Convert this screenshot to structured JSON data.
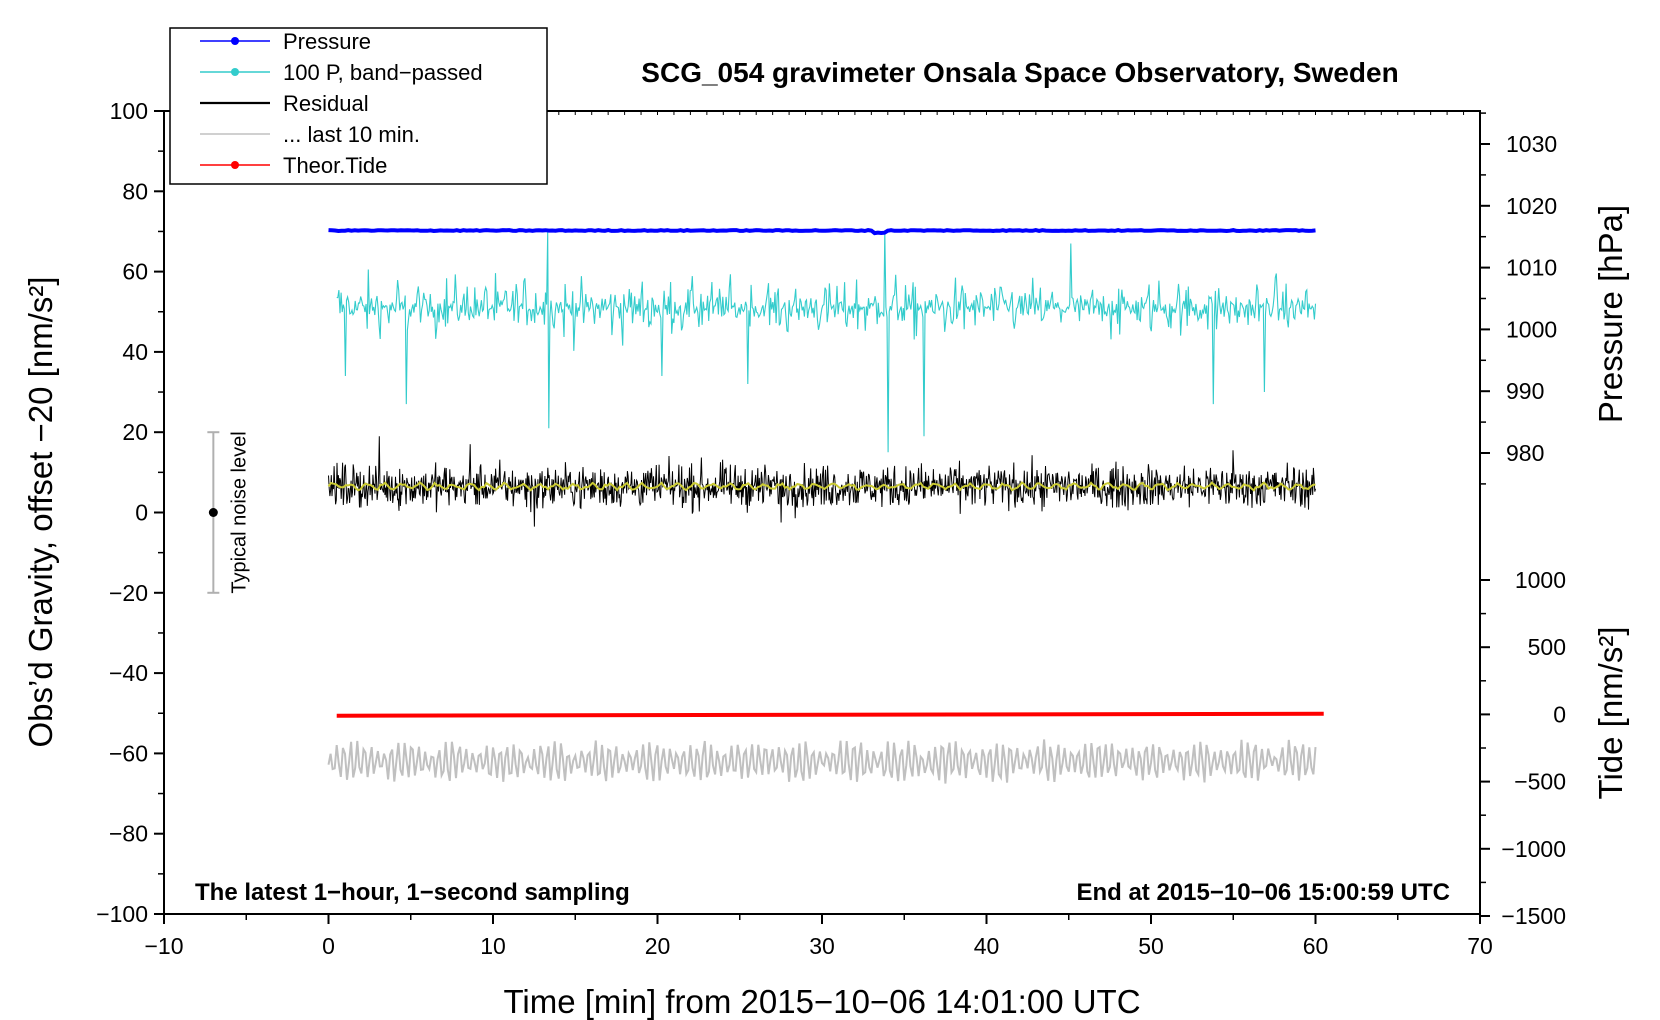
{
  "chart_data": {
    "type": "line",
    "title": "SCG_054 gravimeter Onsala Space Observatory, Sweden",
    "xlabel": "Time [min] from 2015−10−06 14:01:00 UTC",
    "ylabel_left": "Obs’d Gravity, offset −20 [nm/s²]",
    "ylabel_right_top": "Pressure [hPa]",
    "ylabel_right_bottom": "Tide [nm/s²]",
    "xlim": [
      -10,
      70
    ],
    "ylim": [
      -100,
      100
    ],
    "pressure_range": [
      1015,
      1030
    ],
    "tide_range": [
      -1500,
      1000
    ],
    "x_ticks": [
      {
        "v": -10,
        "label": "−10"
      },
      {
        "v": 0,
        "label": "0"
      },
      {
        "v": 10,
        "label": "10"
      },
      {
        "v": 20,
        "label": "20"
      },
      {
        "v": 30,
        "label": "30"
      },
      {
        "v": 40,
        "label": "40"
      },
      {
        "v": 50,
        "label": "50"
      },
      {
        "v": 60,
        "label": "60"
      },
      {
        "v": 70,
        "label": "70"
      }
    ],
    "y_ticks": [
      {
        "v": 100,
        "label": "100"
      },
      {
        "v": 80,
        "label": "80"
      },
      {
        "v": 60,
        "label": "60"
      },
      {
        "v": 40,
        "label": "40"
      },
      {
        "v": 20,
        "label": "20"
      },
      {
        "v": 0,
        "label": "0"
      },
      {
        "v": -20,
        "label": "−20"
      },
      {
        "v": -40,
        "label": "−40"
      },
      {
        "v": -60,
        "label": "−60"
      },
      {
        "v": -80,
        "label": "−80"
      },
      {
        "v": -100,
        "label": "−100"
      }
    ],
    "pressure_ticks": [
      {
        "v": 1030,
        "label": "1030"
      },
      {
        "v": 1020,
        "label": "1020"
      },
      {
        "v": 1010,
        "label": "1010"
      },
      {
        "v": 1000,
        "label": "1000"
      },
      {
        "v": 990,
        "label": "990"
      },
      {
        "v": 980,
        "label": "980"
      }
    ],
    "tide_ticks": [
      {
        "v": 1000,
        "label": "1000"
      },
      {
        "v": 500,
        "label": "500"
      },
      {
        "v": 0,
        "label": "0"
      },
      {
        "v": -500,
        "label": "−500"
      },
      {
        "v": -1000,
        "label": "−1000"
      },
      {
        "v": -1500,
        "label": "−1500"
      }
    ],
    "series": [
      {
        "name": "Pressure",
        "color": "#0000ff",
        "x_range": [
          0,
          60
        ],
        "level_hpa": 1016.0,
        "note": "near-constant pressure trace"
      },
      {
        "name": "100 P, band−passed",
        "color": "#33cccc",
        "x_range": [
          0.5,
          60
        ],
        "center": 51,
        "typical_amplitude": 6,
        "spikes": [
          {
            "x": 1.0,
            "y": 34
          },
          {
            "x": 4.7,
            "y": 27
          },
          {
            "x": 13.3,
            "y": 70
          },
          {
            "x": 13.4,
            "y": 21
          },
          {
            "x": 20.3,
            "y": 34
          },
          {
            "x": 25.5,
            "y": 32
          },
          {
            "x": 33.8,
            "y": 70
          },
          {
            "x": 34.0,
            "y": 15
          },
          {
            "x": 36.2,
            "y": 19
          },
          {
            "x": 45.1,
            "y": 67
          },
          {
            "x": 53.8,
            "y": 27
          },
          {
            "x": 56.9,
            "y": 30
          }
        ]
      },
      {
        "name": "Residual",
        "color": "#000000",
        "x_range": [
          0,
          60
        ],
        "center": 6.5,
        "typical_amplitude": 5,
        "min": -4,
        "max": 19
      },
      {
        "name": "Residual (smoothed)",
        "color": "#cccc33",
        "x_range": [
          0,
          60
        ],
        "center": 6.5
      },
      {
        "name": "... last 10 min.",
        "color": "#c0c0c0",
        "x_range": [
          0,
          60
        ],
        "center": -62,
        "typical_amplitude": 5,
        "min": -72,
        "max": -52
      },
      {
        "name": "Theor.Tide",
        "color": "#ff0000",
        "x_range": [
          0.5,
          60.5
        ],
        "start_nm_s2": -10,
        "end_nm_s2": 5
      }
    ],
    "noise_bar": {
      "label": "Typical noise level",
      "x": -7,
      "center": 0,
      "low": -20,
      "high": 20,
      "color": "#000000",
      "bar_color": "#b0b0b0"
    },
    "annotations": {
      "bottom_left": "The latest 1−hour, 1−second sampling",
      "bottom_right": "End at 2015−10−06 15:00:59 UTC"
    },
    "legend": [
      {
        "label": "Pressure",
        "color": "#0000ff",
        "marker": true
      },
      {
        "label": "100 P, band−passed",
        "color": "#33cccc",
        "marker": true
      },
      {
        "label": "Residual",
        "color": "#000000",
        "marker": false
      },
      {
        "label": "... last 10 min.",
        "color": "#c0c0c0",
        "marker": false
      },
      {
        "label": "Theor.Tide",
        "color": "#ff0000",
        "marker": true
      }
    ]
  }
}
